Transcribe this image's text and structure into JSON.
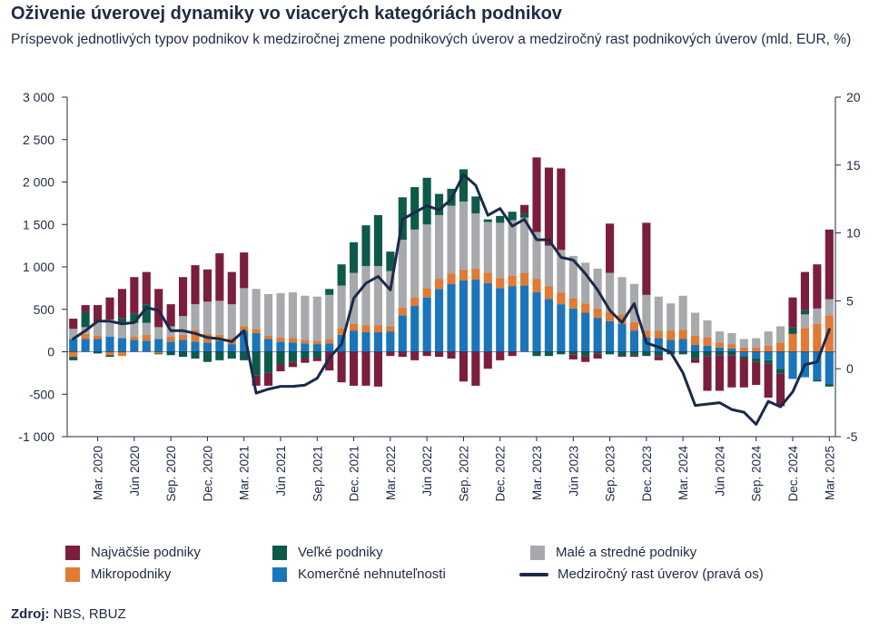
{
  "title": "Oživenie úverovej dynamiky vo viacerých kategóriách podnikov",
  "subtitle": "Príspevok jednotlivých typov podnikov k medziročnej zmene podnikových úverov a medziročný rast podnikových úverov (mld. EUR, %)",
  "source_label": "Zdroj:",
  "source_text": "NBS, RBUZ",
  "colors": {
    "largest": "#7b1e3e",
    "large": "#0e5a4a",
    "sme": "#a7a9ac",
    "micro": "#e07a35",
    "cre": "#1a75bb",
    "line": "#1c2a4a"
  },
  "legend": [
    {
      "key": "largest",
      "label": "Najväčšie podniky",
      "type": "box"
    },
    {
      "key": "large",
      "label": "Veľké podniky",
      "type": "box"
    },
    {
      "key": "sme",
      "label": "Malé a stredné podniky",
      "type": "box"
    },
    {
      "key": "micro",
      "label": "Mikropodniky",
      "type": "box"
    },
    {
      "key": "cre",
      "label": "Komerčné nehnuteľnosti",
      "type": "box"
    },
    {
      "key": "line",
      "label": "Medziročný rast úverov (pravá os)",
      "type": "line"
    }
  ],
  "chart_data": {
    "type": "bar",
    "stacked": true,
    "title": "Oživenie úverovej dynamiky vo viacerých kategóriách podnikov",
    "ylim": [
      -1000,
      3000
    ],
    "yticks": [
      -1000,
      -500,
      0,
      500,
      1000,
      1500,
      2000,
      2500,
      3000
    ],
    "ytick_labels": [
      "-1 000",
      "-500",
      "0",
      "500",
      "1 000",
      "1 500",
      "2 000",
      "2 500",
      "3 000"
    ],
    "y2lim": [
      -5,
      20
    ],
    "y2ticks": [
      -5,
      0,
      5,
      10,
      15,
      20
    ],
    "y2tick_labels": [
      "-5",
      "0",
      "5",
      "10",
      "15",
      "20"
    ],
    "categories": [
      "Jan. 2020",
      "Feb. 2020",
      "Mar. 2020",
      "Apr. 2020",
      "Máj 2020",
      "Jún 2020",
      "Júl 2020",
      "Aug. 2020",
      "Sep. 2020",
      "Okt. 2020",
      "Nov. 2020",
      "Dec. 2020",
      "Jan. 2021",
      "Feb. 2021",
      "Mar. 2021",
      "Apr. 2021",
      "Máj 2021",
      "Jún 2021",
      "Júl 2021",
      "Aug. 2021",
      "Sep. 2021",
      "Okt. 2021",
      "Nov. 2021",
      "Dec. 2021",
      "Jan. 2022",
      "Feb. 2022",
      "Mar. 2022",
      "Apr. 2022",
      "Máj 2022",
      "Jún 2022",
      "Júl 2022",
      "Aug. 2022",
      "Sep. 2022",
      "Okt. 2022",
      "Nov. 2022",
      "Dec. 2022",
      "Jan. 2023",
      "Feb. 2023",
      "Mar. 2023",
      "Apr. 2023",
      "Máj 2023",
      "Jún 2023",
      "Júl 2023",
      "Aug. 2023",
      "Sep. 2023",
      "Okt. 2023",
      "Nov. 2023",
      "Dec. 2023",
      "Jan. 2024",
      "Feb. 2024",
      "Mar. 2024",
      "Apr. 2024",
      "Máj 2024",
      "Jún 2024",
      "Júl 2024",
      "Aug. 2024",
      "Sep. 2024",
      "Okt. 2024",
      "Nov. 2024",
      "Dec. 2024",
      "Jan. 2025",
      "Feb. 2025",
      "Mar. 2025"
    ],
    "xtick_labels": [
      "Mar. 2020",
      "Jún 2020",
      "Sep. 2020",
      "Dec. 2020",
      "Mar. 2021",
      "Jún 2021",
      "Sep. 2021",
      "Dec. 2021",
      "Mar. 2022",
      "Jún 2022",
      "Sep. 2022",
      "Dec. 2022",
      "Mar. 2023",
      "Jún 2023",
      "Sep. 2023",
      "Dec. 2023",
      "Mar. 2024",
      "Jún 2024",
      "Sep. 2024",
      "Dec. 2024",
      "Mar. 2025"
    ],
    "xtick_indices": [
      2,
      5,
      8,
      11,
      14,
      17,
      20,
      23,
      26,
      29,
      32,
      35,
      38,
      41,
      44,
      47,
      50,
      53,
      56,
      59,
      62
    ],
    "series": [
      {
        "key": "cre",
        "name": "Komerčné nehnuteľnosti",
        "values": [
          150,
          150,
          150,
          180,
          160,
          140,
          130,
          150,
          120,
          140,
          120,
          110,
          130,
          90,
          250,
          220,
          150,
          120,
          110,
          100,
          90,
          100,
          200,
          250,
          230,
          230,
          240,
          430,
          540,
          640,
          740,
          800,
          840,
          850,
          810,
          750,
          770,
          780,
          700,
          620,
          560,
          510,
          460,
          400,
          360,
          330,
          250,
          170,
          160,
          140,
          150,
          80,
          70,
          50,
          40,
          -50,
          -80,
          -100,
          -200,
          -320,
          -300,
          -330,
          -380
        ]
      },
      {
        "key": "micro",
        "name": "Mikropodniky",
        "values": [
          -60,
          60,
          40,
          -40,
          -50,
          40,
          70,
          -20,
          60,
          60,
          140,
          100,
          70,
          70,
          50,
          50,
          40,
          50,
          50,
          40,
          40,
          50,
          80,
          80,
          80,
          80,
          60,
          90,
          100,
          110,
          120,
          120,
          130,
          130,
          120,
          120,
          130,
          150,
          160,
          150,
          140,
          120,
          110,
          110,
          110,
          110,
          100,
          80,
          90,
          110,
          110,
          110,
          100,
          60,
          50,
          50,
          50,
          70,
          110,
          210,
          280,
          330,
          430
        ]
      },
      {
        "key": "sme",
        "name": "Malé a stredné podniky",
        "values": [
          120,
          80,
          160,
          200,
          170,
          160,
          140,
          140,
          120,
          220,
          300,
          380,
          400,
          400,
          450,
          470,
          490,
          520,
          540,
          520,
          520,
          520,
          500,
          600,
          700,
          700,
          650,
          800,
          800,
          750,
          750,
          800,
          800,
          650,
          600,
          650,
          650,
          650,
          550,
          480,
          500,
          500,
          480,
          470,
          460,
          440,
          450,
          420,
          400,
          320,
          400,
          270,
          200,
          130,
          130,
          100,
          110,
          170,
          190,
          0,
          160,
          180,
          190
        ]
      },
      {
        "key": "large",
        "name": "Veľké podniky",
        "values": [
          -40,
          180,
          -20,
          -20,
          70,
          110,
          220,
          -10,
          -40,
          -60,
          -80,
          -120,
          -100,
          -80,
          -100,
          -280,
          -250,
          -150,
          -120,
          -80,
          -70,
          70,
          250,
          360,
          480,
          600,
          230,
          500,
          500,
          550,
          250,
          200,
          380,
          200,
          30,
          80,
          100,
          50,
          -50,
          -50,
          -30,
          -30,
          -50,
          -20,
          -30,
          -50,
          -40,
          -50,
          -50,
          -30,
          -30,
          -90,
          -50,
          -40,
          -40,
          -30,
          -40,
          -40,
          -60,
          80,
          50,
          -20,
          -30
        ]
      },
      {
        "key": "largest",
        "name": "Najväčšie podniky",
        "values": [
          120,
          80,
          200,
          260,
          340,
          430,
          380,
          450,
          260,
          460,
          460,
          380,
          560,
          380,
          420,
          -120,
          -150,
          -80,
          -60,
          -50,
          -40,
          -220,
          -360,
          -400,
          -400,
          -410,
          -50,
          -60,
          -100,
          -50,
          -60,
          -80,
          -350,
          -400,
          -200,
          -100,
          -50,
          100,
          880,
          920,
          960,
          -60,
          -70,
          -60,
          580,
          -10,
          -20,
          850,
          -50,
          0,
          0,
          -40,
          -410,
          -420,
          -380,
          -340,
          -270,
          -400,
          -380,
          350,
          450,
          520,
          820
        ]
      }
    ],
    "line": {
      "name": "Medziročný rast úverov (pravá os)",
      "axis": "right",
      "values": [
        2.2,
        2.8,
        3.5,
        3.5,
        3.3,
        3.4,
        4.5,
        4.3,
        2.8,
        2.8,
        2.6,
        2.3,
        2.2,
        2.0,
        2.8,
        -1.8,
        -1.5,
        -1.3,
        -1.3,
        -1.2,
        -0.7,
        0.8,
        1.8,
        5.2,
        6.3,
        6.8,
        5.8,
        11.0,
        11.5,
        12.0,
        11.7,
        12.5,
        14.3,
        13.5,
        11.3,
        11.8,
        10.5,
        11.0,
        9.5,
        9.5,
        8.2,
        8.0,
        7.0,
        5.8,
        4.3,
        3.4,
        4.8,
        1.9,
        1.6,
        1.2,
        -0.3,
        -2.7,
        -2.6,
        -2.5,
        -3.0,
        -3.2,
        -4.1,
        -2.4,
        -2.8,
        -1.7,
        0.3,
        0.5,
        2.9
      ]
    }
  }
}
